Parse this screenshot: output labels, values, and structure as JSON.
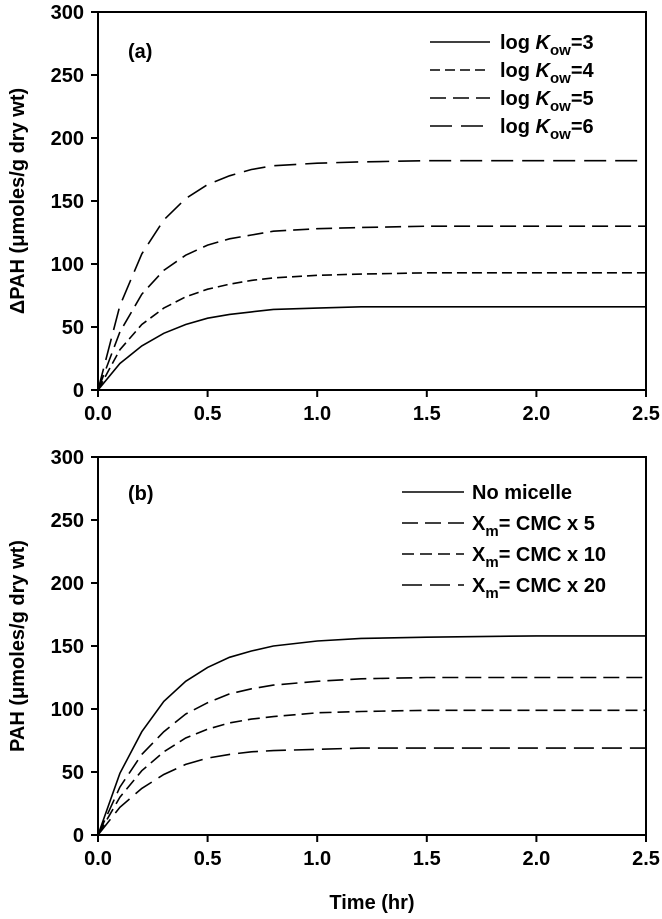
{
  "chart_data": [
    {
      "type": "line",
      "panel_label": "(a)",
      "xlabel": "",
      "ylabel": "ΔPAH (μmoles/g dry wt)",
      "xlim": [
        0,
        2.5
      ],
      "ylim": [
        0,
        300
      ],
      "x_ticks": [
        "0.0",
        "0.5",
        "1.0",
        "1.5",
        "2.0",
        "2.5"
      ],
      "y_ticks": [
        "0",
        "50",
        "100",
        "150",
        "200",
        "250",
        "300"
      ],
      "legend_position": "top-right",
      "series": [
        {
          "name": "log Kow=3",
          "legend_main": "log ",
          "legend_italic": "K",
          "legend_sub": "ow",
          "legend_tail": "=3",
          "dash": "none",
          "x": [
            0,
            0.1,
            0.2,
            0.3,
            0.4,
            0.5,
            0.6,
            0.7,
            0.8,
            1.0,
            1.2,
            1.5,
            2.0,
            2.5
          ],
          "y": [
            0,
            21,
            35,
            45,
            52,
            57,
            60,
            62,
            64,
            65,
            66,
            66,
            66,
            66
          ]
        },
        {
          "name": "log Kow=4",
          "legend_main": "log ",
          "legend_italic": "K",
          "legend_sub": "ow",
          "legend_tail": "=4",
          "dash": "10,5",
          "x": [
            0,
            0.1,
            0.2,
            0.3,
            0.4,
            0.5,
            0.6,
            0.7,
            0.8,
            1.0,
            1.2,
            1.5,
            2.0,
            2.5
          ],
          "y": [
            0,
            32,
            52,
            65,
            74,
            80,
            84,
            87,
            89,
            91,
            92,
            93,
            93,
            93
          ]
        },
        {
          "name": "log Kow=5",
          "legend_main": "log ",
          "legend_italic": "K",
          "legend_sub": "ow",
          "legend_tail": "=5",
          "dash": "16,7",
          "x": [
            0,
            0.1,
            0.2,
            0.3,
            0.4,
            0.5,
            0.6,
            0.7,
            0.8,
            1.0,
            1.2,
            1.5,
            2.0,
            2.5
          ],
          "y": [
            0,
            46,
            76,
            95,
            107,
            115,
            120,
            123,
            126,
            128,
            129,
            130,
            130,
            130
          ]
        },
        {
          "name": "log Kow=6",
          "legend_main": "log ",
          "legend_italic": "K",
          "legend_sub": "ow",
          "legend_tail": "=6",
          "dash": "22,9",
          "x": [
            0,
            0.1,
            0.2,
            0.3,
            0.4,
            0.5,
            0.6,
            0.7,
            0.8,
            1.0,
            1.2,
            1.5,
            2.0,
            2.5
          ],
          "y": [
            0,
            67,
            108,
            135,
            152,
            163,
            170,
            175,
            178,
            180,
            181,
            182,
            182,
            182
          ]
        }
      ]
    },
    {
      "type": "line",
      "panel_label": "(b)",
      "xlabel": "Time (hr)",
      "ylabel": "PAH (μmoles/g dry wt)",
      "xlim": [
        0,
        2.5
      ],
      "ylim": [
        0,
        300
      ],
      "x_ticks": [
        "0.0",
        "0.5",
        "1.0",
        "1.5",
        "2.0",
        "2.5"
      ],
      "y_ticks": [
        "0",
        "50",
        "100",
        "150",
        "200",
        "250",
        "300"
      ],
      "legend_position": "top-right",
      "series": [
        {
          "name": "No micelle",
          "legend_main": "No micelle",
          "dash": "none",
          "x": [
            0,
            0.1,
            0.2,
            0.3,
            0.4,
            0.5,
            0.6,
            0.7,
            0.8,
            1.0,
            1.2,
            1.5,
            2.0,
            2.5
          ],
          "y": [
            0,
            49,
            82,
            106,
            122,
            133,
            141,
            146,
            150,
            154,
            156,
            157,
            158,
            158
          ]
        },
        {
          "name": "Xm= CMC x 5",
          "legend_main": "X",
          "legend_sub": "m",
          "legend_tail": "= CMC x 5",
          "dash": "16,7",
          "x": [
            0,
            0.1,
            0.2,
            0.3,
            0.4,
            0.5,
            0.6,
            0.7,
            0.8,
            1.0,
            1.2,
            1.5,
            2.0,
            2.5
          ],
          "y": [
            0,
            38,
            64,
            82,
            96,
            105,
            112,
            116,
            119,
            122,
            124,
            125,
            125,
            125
          ]
        },
        {
          "name": "Xm= CMC x 10",
          "legend_main": "X",
          "legend_sub": "m",
          "legend_tail": "= CMC x 10",
          "dash": "12,6",
          "x": [
            0,
            0.1,
            0.2,
            0.3,
            0.4,
            0.5,
            0.6,
            0.7,
            0.8,
            1.0,
            1.2,
            1.5,
            2.0,
            2.5
          ],
          "y": [
            0,
            30,
            51,
            66,
            77,
            84,
            89,
            92,
            94,
            97,
            98,
            99,
            99,
            99
          ]
        },
        {
          "name": "Xm= CMC x 20",
          "legend_main": "X",
          "legend_sub": "m",
          "legend_tail": "= CMC x 20",
          "dash": "20,8",
          "x": [
            0,
            0.1,
            0.2,
            0.3,
            0.4,
            0.5,
            0.6,
            0.7,
            0.8,
            1.0,
            1.2,
            1.5,
            2.0,
            2.5
          ],
          "y": [
            0,
            22,
            37,
            48,
            56,
            61,
            64,
            66,
            67,
            68,
            69,
            69,
            69,
            69
          ]
        }
      ]
    }
  ]
}
